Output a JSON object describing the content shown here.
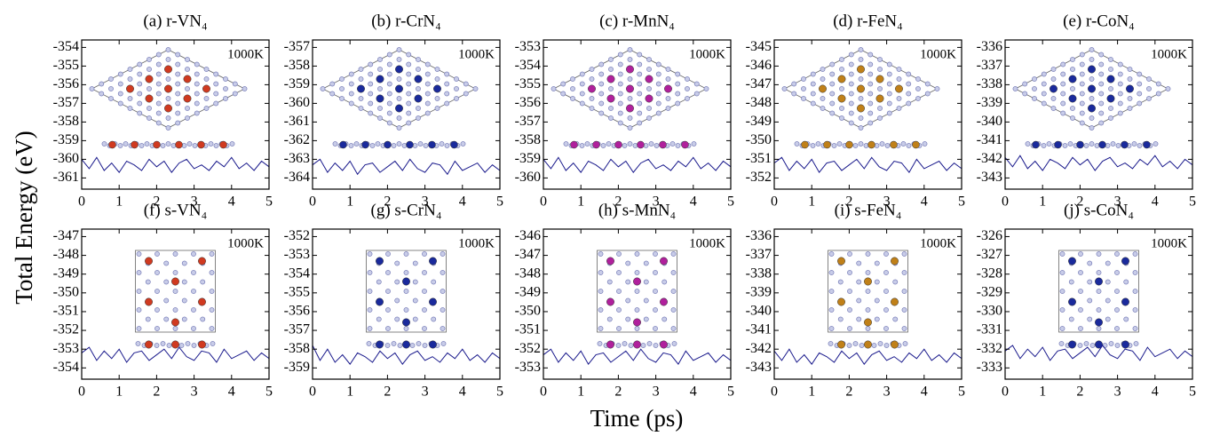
{
  "y_label": "Total Energy (eV)",
  "x_label": "Time (ps)",
  "chart_data": [
    {
      "type": "line",
      "title": "(a) r-VN₄",
      "annotation": "1000K",
      "color": "#1a1a8c",
      "xlim": [
        0,
        5
      ],
      "xticks": [
        0,
        1,
        2,
        3,
        4,
        5
      ],
      "ylim": [
        -361.6,
        -353.6
      ],
      "yticks": [
        -354,
        -355,
        -356,
        -357,
        -358,
        -359,
        -360,
        -361
      ],
      "x": [
        0,
        0.2,
        0.4,
        0.6,
        0.8,
        1,
        1.2,
        1.4,
        1.6,
        1.8,
        2,
        2.2,
        2.4,
        2.6,
        2.8,
        3,
        3.2,
        3.4,
        3.6,
        3.8,
        4,
        4.2,
        4.4,
        4.6,
        4.8,
        5
      ],
      "values": [
        -360.0,
        -360.5,
        -359.9,
        -360.6,
        -360.2,
        -360.7,
        -360.1,
        -360.3,
        -360.6,
        -360.0,
        -360.4,
        -360.1,
        -360.7,
        -360.2,
        -360.0,
        -360.5,
        -360.3,
        -360.6,
        -360.1,
        -360.4,
        -359.9,
        -360.5,
        -360.2,
        -360.6,
        -360.1,
        -360.4
      ]
    },
    {
      "type": "line",
      "title": "(b) r-CrN₄",
      "annotation": "1000K",
      "color": "#1a1a8c",
      "xlim": [
        0,
        5
      ],
      "xticks": [
        0,
        1,
        2,
        3,
        4,
        5
      ],
      "ylim": [
        -364.6,
        -356.6
      ],
      "yticks": [
        -357,
        -358,
        -359,
        -360,
        -361,
        -362,
        -363,
        -364
      ],
      "x": [
        0,
        0.2,
        0.4,
        0.6,
        0.8,
        1,
        1.2,
        1.4,
        1.6,
        1.8,
        2,
        2.2,
        2.4,
        2.6,
        2.8,
        3,
        3.2,
        3.4,
        3.6,
        3.8,
        4,
        4.2,
        4.4,
        4.6,
        4.8,
        5
      ],
      "values": [
        -363.3,
        -363.0,
        -363.7,
        -363.2,
        -363.6,
        -363.1,
        -363.8,
        -363.3,
        -363.2,
        -363.7,
        -363.4,
        -363.1,
        -363.6,
        -363.0,
        -363.5,
        -363.7,
        -363.2,
        -363.3,
        -363.8,
        -363.1,
        -363.6,
        -363.4,
        -363.2,
        -363.7,
        -363.3,
        -363.6
      ]
    },
    {
      "type": "line",
      "title": "(c) r-MnN₄",
      "annotation": "1000K",
      "color": "#1a1a8c",
      "xlim": [
        0,
        5
      ],
      "xticks": [
        0,
        1,
        2,
        3,
        4,
        5
      ],
      "ylim": [
        -360.6,
        -352.6
      ],
      "yticks": [
        -353,
        -354,
        -355,
        -356,
        -357,
        -358,
        -359,
        -360
      ],
      "x": [
        0,
        0.2,
        0.4,
        0.6,
        0.8,
        1,
        1.2,
        1.4,
        1.6,
        1.8,
        2,
        2.2,
        2.4,
        2.6,
        2.8,
        3,
        3.2,
        3.4,
        3.6,
        3.8,
        4,
        4.2,
        4.4,
        4.6,
        4.8,
        5
      ],
      "values": [
        -359.0,
        -359.5,
        -358.9,
        -359.6,
        -359.2,
        -359.7,
        -359.1,
        -359.3,
        -359.6,
        -359.0,
        -359.4,
        -359.1,
        -359.7,
        -359.2,
        -359.0,
        -359.5,
        -359.3,
        -359.6,
        -359.1,
        -359.4,
        -358.9,
        -359.5,
        -359.2,
        -359.6,
        -359.1,
        -359.4
      ]
    },
    {
      "type": "line",
      "title": "(d) r-FeN₄",
      "annotation": "1000K",
      "color": "#1a1a8c",
      "xlim": [
        0,
        5
      ],
      "xticks": [
        0,
        1,
        2,
        3,
        4,
        5
      ],
      "ylim": [
        -352.6,
        -344.6
      ],
      "yticks": [
        -345,
        -346,
        -347,
        -348,
        -349,
        -350,
        -351,
        -352
      ],
      "x": [
        0,
        0.2,
        0.4,
        0.6,
        0.8,
        1,
        1.2,
        1.4,
        1.6,
        1.8,
        2,
        2.2,
        2.4,
        2.6,
        2.8,
        3,
        3.2,
        3.4,
        3.6,
        3.8,
        4,
        4.2,
        4.4,
        4.6,
        4.8,
        5
      ],
      "values": [
        -351.2,
        -350.9,
        -351.6,
        -351.1,
        -351.5,
        -351.0,
        -351.7,
        -351.2,
        -351.1,
        -351.6,
        -351.3,
        -351.0,
        -351.5,
        -350.9,
        -351.4,
        -351.6,
        -351.1,
        -351.2,
        -351.7,
        -351.0,
        -351.5,
        -351.3,
        -351.1,
        -351.6,
        -351.2,
        -351.5
      ]
    },
    {
      "type": "line",
      "title": "(e) r-CoN₄",
      "annotation": "1000K",
      "color": "#1a1a8c",
      "xlim": [
        0,
        5
      ],
      "xticks": [
        0,
        1,
        2,
        3,
        4,
        5
      ],
      "ylim": [
        -343.6,
        -335.6
      ],
      "yticks": [
        -336,
        -337,
        -338,
        -339,
        -340,
        -341,
        -342,
        -343
      ],
      "x": [
        0,
        0.2,
        0.4,
        0.6,
        0.8,
        1,
        1.2,
        1.4,
        1.6,
        1.8,
        2,
        2.2,
        2.4,
        2.6,
        2.8,
        3,
        3.2,
        3.4,
        3.6,
        3.8,
        4,
        4.2,
        4.4,
        4.6,
        4.8,
        5
      ],
      "values": [
        -341.9,
        -342.4,
        -341.8,
        -342.5,
        -342.1,
        -342.6,
        -342.0,
        -342.2,
        -342.5,
        -341.9,
        -342.3,
        -342.0,
        -342.6,
        -342.1,
        -341.9,
        -342.4,
        -342.2,
        -342.5,
        -342.0,
        -342.3,
        -341.8,
        -342.4,
        -342.1,
        -342.5,
        -342.0,
        -342.3
      ]
    },
    {
      "type": "line",
      "title": "(f) s-VN₄",
      "annotation": "1000K",
      "color": "#1a1a8c",
      "xlim": [
        0,
        5
      ],
      "xticks": [
        0,
        1,
        2,
        3,
        4,
        5
      ],
      "ylim": [
        -354.6,
        -346.6
      ],
      "yticks": [
        -347,
        -348,
        -349,
        -350,
        -351,
        -352,
        -353,
        -354
      ],
      "x": [
        0,
        0.2,
        0.4,
        0.6,
        0.8,
        1,
        1.2,
        1.4,
        1.6,
        1.8,
        2,
        2.2,
        2.4,
        2.6,
        2.8,
        3,
        3.2,
        3.4,
        3.6,
        3.8,
        4,
        4.2,
        4.4,
        4.6,
        4.8,
        5
      ],
      "values": [
        -353.2,
        -352.9,
        -353.6,
        -353.1,
        -353.5,
        -353.0,
        -353.7,
        -353.2,
        -353.1,
        -353.6,
        -353.3,
        -353.0,
        -353.5,
        -352.9,
        -353.4,
        -353.6,
        -353.1,
        -353.2,
        -353.7,
        -353.0,
        -353.5,
        -353.3,
        -353.1,
        -353.6,
        -353.2,
        -353.5
      ]
    },
    {
      "type": "line",
      "title": "(g) s-CrN₄",
      "annotation": "1000K",
      "color": "#1a1a8c",
      "xlim": [
        0,
        5
      ],
      "xticks": [
        0,
        1,
        2,
        3,
        4,
        5
      ],
      "ylim": [
        -359.6,
        -351.6
      ],
      "yticks": [
        -352,
        -353,
        -354,
        -355,
        -356,
        -357,
        -358,
        -359
      ],
      "x": [
        0,
        0.2,
        0.4,
        0.6,
        0.8,
        1,
        1.2,
        1.4,
        1.6,
        1.8,
        2,
        2.2,
        2.4,
        2.6,
        2.8,
        3,
        3.2,
        3.4,
        3.6,
        3.8,
        4,
        4.2,
        4.4,
        4.6,
        4.8,
        5
      ],
      "values": [
        -357.8,
        -358.6,
        -358.0,
        -358.7,
        -358.3,
        -358.8,
        -358.2,
        -358.4,
        -358.7,
        -358.1,
        -358.5,
        -358.2,
        -358.8,
        -358.3,
        -358.1,
        -358.6,
        -358.4,
        -358.7,
        -358.2,
        -358.5,
        -358.0,
        -358.6,
        -358.3,
        -358.7,
        -358.2,
        -358.5
      ]
    },
    {
      "type": "line",
      "title": "(h) s-MnN₄",
      "annotation": "1000K",
      "color": "#1a1a8c",
      "xlim": [
        0,
        5
      ],
      "xticks": [
        0,
        1,
        2,
        3,
        4,
        5
      ],
      "ylim": [
        -353.6,
        -345.6
      ],
      "yticks": [
        -346,
        -347,
        -348,
        -349,
        -350,
        -351,
        -352,
        -353
      ],
      "x": [
        0,
        0.2,
        0.4,
        0.6,
        0.8,
        1,
        1.2,
        1.4,
        1.6,
        1.8,
        2,
        2.2,
        2.4,
        2.6,
        2.8,
        3,
        3.2,
        3.4,
        3.6,
        3.8,
        4,
        4.2,
        4.4,
        4.6,
        4.8,
        5
      ],
      "values": [
        -352.3,
        -352.0,
        -352.7,
        -352.2,
        -352.6,
        -352.1,
        -352.8,
        -352.3,
        -352.2,
        -352.7,
        -352.4,
        -352.1,
        -352.6,
        -352.0,
        -352.5,
        -352.7,
        -352.2,
        -352.3,
        -352.8,
        -352.1,
        -352.6,
        -352.4,
        -352.2,
        -352.7,
        -352.3,
        -352.6
      ]
    },
    {
      "type": "line",
      "title": "(i) s-FeN₄",
      "annotation": "1000K",
      "color": "#1a1a8c",
      "xlim": [
        0,
        5
      ],
      "xticks": [
        0,
        1,
        2,
        3,
        4,
        5
      ],
      "ylim": [
        -343.6,
        -335.6
      ],
      "yticks": [
        -336,
        -337,
        -338,
        -339,
        -340,
        -341,
        -342,
        -343
      ],
      "x": [
        0,
        0.2,
        0.4,
        0.6,
        0.8,
        1,
        1.2,
        1.4,
        1.6,
        1.8,
        2,
        2.2,
        2.4,
        2.6,
        2.8,
        3,
        3.2,
        3.4,
        3.6,
        3.8,
        4,
        4.2,
        4.4,
        4.6,
        4.8,
        5
      ],
      "values": [
        -342.1,
        -342.6,
        -342.0,
        -342.7,
        -342.3,
        -342.8,
        -342.2,
        -342.4,
        -342.7,
        -342.1,
        -342.5,
        -342.2,
        -342.8,
        -342.3,
        -342.1,
        -342.6,
        -342.4,
        -342.7,
        -342.2,
        -342.5,
        -342.0,
        -342.6,
        -342.3,
        -342.7,
        -342.2,
        -342.5
      ]
    },
    {
      "type": "line",
      "title": "(j) s-CoN₄",
      "annotation": "1000K",
      "color": "#1a1a8c",
      "xlim": [
        0,
        5
      ],
      "xticks": [
        0,
        1,
        2,
        3,
        4,
        5
      ],
      "ylim": [
        -333.6,
        -325.6
      ],
      "yticks": [
        -326,
        -327,
        -328,
        -329,
        -330,
        -331,
        -332,
        -333
      ],
      "x": [
        0,
        0.2,
        0.4,
        0.6,
        0.8,
        1,
        1.2,
        1.4,
        1.6,
        1.8,
        2,
        2.2,
        2.4,
        2.6,
        2.8,
        3,
        3.2,
        3.4,
        3.6,
        3.8,
        4,
        4.2,
        4.4,
        4.6,
        4.8,
        5
      ],
      "values": [
        -332.1,
        -331.8,
        -332.5,
        -332.0,
        -332.4,
        -331.9,
        -332.6,
        -332.1,
        -332.0,
        -332.5,
        -332.2,
        -331.9,
        -332.4,
        -331.8,
        -332.3,
        -332.5,
        -332.0,
        -332.1,
        -332.6,
        -331.9,
        -332.4,
        -332.2,
        -332.0,
        -332.5,
        -332.1,
        -332.4
      ]
    }
  ]
}
